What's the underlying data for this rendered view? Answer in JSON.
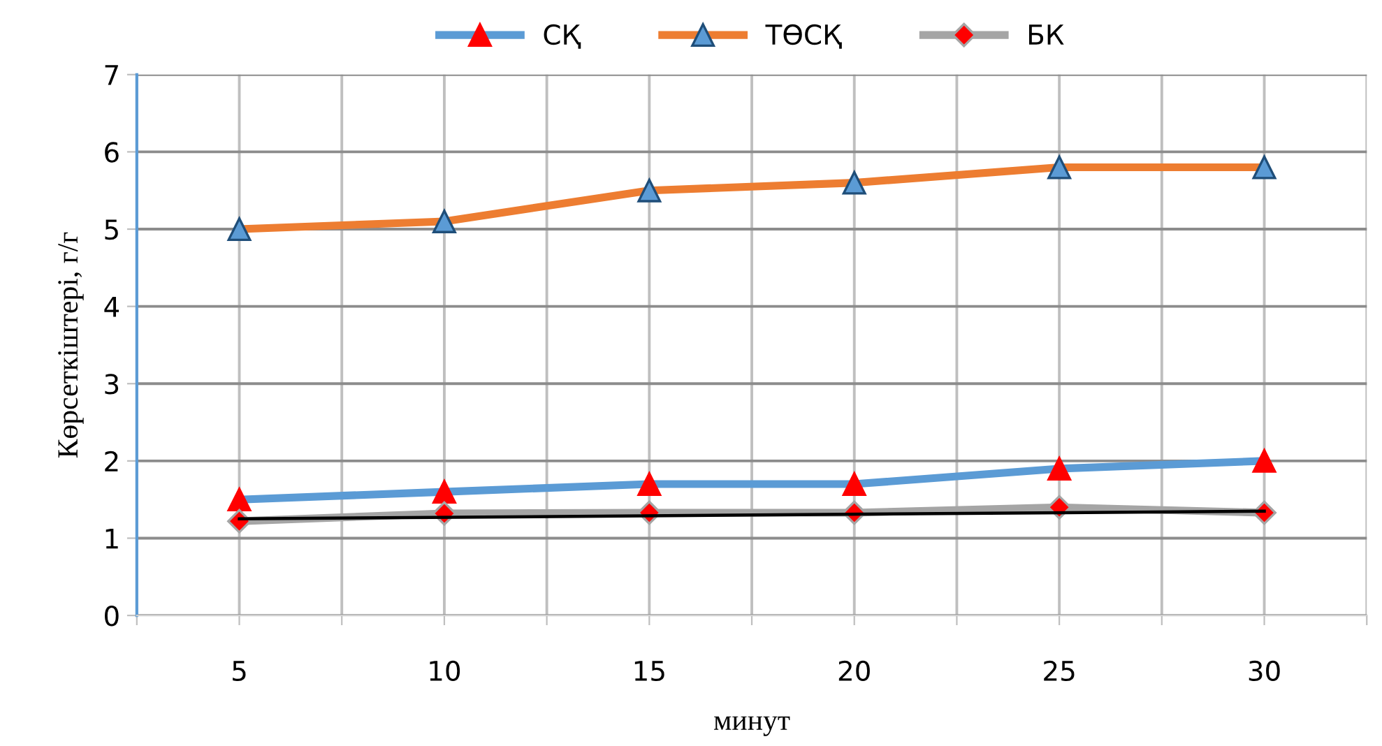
{
  "chart_data": {
    "type": "line",
    "xlabel": "минут",
    "ylabel": "Көрсеткіштері, г/г",
    "x": [
      5,
      10,
      15,
      20,
      25,
      30
    ],
    "series": [
      {
        "name": "СҚ",
        "color": "#5b9bd5",
        "marker": "triangle",
        "values": [
          1.5,
          1.6,
          1.7,
          1.7,
          1.9,
          2.0
        ]
      },
      {
        "name": "ТӨСҚ",
        "color": "#ed7d31",
        "marker": "triangle",
        "values": [
          5.0,
          5.1,
          5.5,
          5.6,
          5.8,
          5.8
        ]
      },
      {
        "name": "БК",
        "color": "#a5a5a5",
        "marker": "diamond",
        "values": [
          1.22,
          1.32,
          1.33,
          1.33,
          1.4,
          1.33
        ]
      },
      {
        "color": "#000000",
        "marker": "none",
        "x": [
          5,
          30
        ],
        "values": [
          1.25,
          1.35
        ]
      }
    ],
    "xlim": [
      2.5,
      32.5
    ],
    "xticks": [
      {
        "value": 2.5,
        "label": null
      },
      5,
      {
        "value": 7.5,
        "label": null
      },
      10,
      {
        "value": 12.5,
        "label": null
      },
      15,
      {
        "value": 17.5,
        "label": null
      },
      20,
      {
        "value": 22.5,
        "label": null
      },
      25,
      {
        "value": 27.5,
        "label": null
      },
      30,
      {
        "value": 32.5,
        "label": null
      }
    ],
    "ylim": [
      0,
      7
    ],
    "yticks": [
      0,
      1,
      2,
      3,
      4,
      5,
      6,
      7
    ],
    "grid": true,
    "legend": "top",
    "line_style": "solid"
  }
}
